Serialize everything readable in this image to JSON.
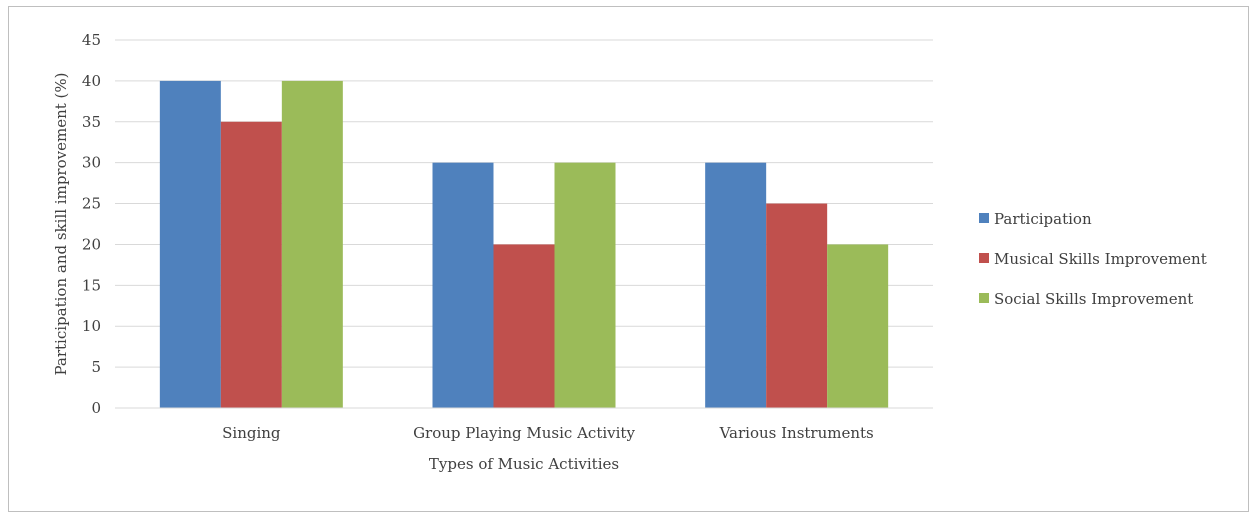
{
  "chart_data": {
    "type": "bar",
    "categories": [
      "Singing",
      "Group Playing Music Activity",
      "Various Instruments"
    ],
    "series": [
      {
        "name": "Participation",
        "values": [
          40,
          30,
          30
        ],
        "color": "#4f81bd"
      },
      {
        "name": "Musical Skills Improvement",
        "values": [
          35,
          20,
          25
        ],
        "color": "#c0504d"
      },
      {
        "name": "Social Skills Improvement",
        "values": [
          40,
          30,
          20
        ],
        "color": "#9bbb59"
      }
    ],
    "title": "",
    "xlabel": "Types of Music Activities",
    "ylabel": "Participation and skill improvement (%)",
    "ylim": [
      0,
      45
    ],
    "yticks": [
      0,
      5,
      10,
      15,
      20,
      25,
      30,
      35,
      40,
      45
    ],
    "grid": true,
    "legend_position": "right"
  }
}
